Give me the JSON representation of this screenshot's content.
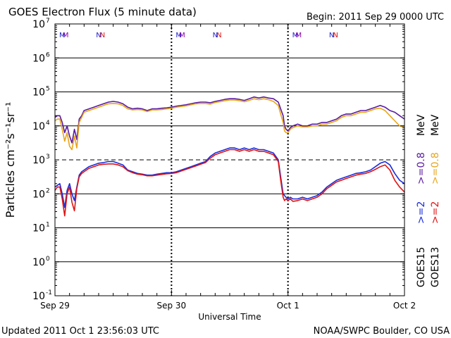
{
  "chart_data": {
    "type": "line",
    "title": "GOES Electron Flux (5 minute data)",
    "begin_label": "Begin: 2011 Sep 29 0000 UTC",
    "xlabel": "Universal Time",
    "ylabel": "Particles cm⁻²s⁻¹sr⁻¹",
    "x_ticks": [
      "Sep 29",
      "Sep 30",
      "Oct 1",
      "Oct 2"
    ],
    "xlim_hours": [
      0,
      72
    ],
    "ylim_log10": [
      -1,
      7
    ],
    "y_ticks": [
      {
        "base": "10",
        "exp": "-1",
        "value": -1
      },
      {
        "base": "10",
        "exp": "0",
        "value": 0
      },
      {
        "base": "10",
        "exp": "1",
        "value": 1
      },
      {
        "base": "10",
        "exp": "2",
        "value": 2
      },
      {
        "base": "10",
        "exp": "3",
        "value": 3
      },
      {
        "base": "10",
        "exp": "4",
        "value": 4
      },
      {
        "base": "10",
        "exp": "5",
        "value": 5
      },
      {
        "base": "10",
        "exp": "6",
        "value": 6
      },
      {
        "base": "10",
        "exp": "7",
        "value": 7
      }
    ],
    "threshold_log10": 3,
    "grid": "horizontal decades, dashed day separators",
    "markers": [
      {
        "label": "M",
        "hour": 1.5,
        "color": "#2222cc"
      },
      {
        "label": "M",
        "hour": 2.2,
        "color": "#8800aa"
      },
      {
        "label": "N",
        "hour": 9.0,
        "color": "#2222cc"
      },
      {
        "label": "N",
        "hour": 9.8,
        "color": "#dd1111"
      },
      {
        "label": "M",
        "hour": 25.5,
        "color": "#2222cc"
      },
      {
        "label": "M",
        "hour": 26.2,
        "color": "#8800aa"
      },
      {
        "label": "N",
        "hour": 33.0,
        "color": "#2222cc"
      },
      {
        "label": "N",
        "hour": 33.8,
        "color": "#dd1111"
      },
      {
        "label": "M",
        "hour": 49.5,
        "color": "#2222cc"
      },
      {
        "label": "M",
        "hour": 50.2,
        "color": "#8800aa"
      },
      {
        "label": "N",
        "hour": 57.0,
        "color": "#2222cc"
      },
      {
        "label": "N",
        "hour": 57.8,
        "color": "#dd1111"
      }
    ],
    "series": [
      {
        "name": "GOES15 >=0.8 MeV",
        "color": "#5a1aa0",
        "x": [
          0,
          0.5,
          1,
          1.5,
          2,
          2.5,
          3,
          3.5,
          4,
          4.5,
          5,
          5.5,
          6,
          7,
          8,
          9,
          10,
          11,
          12,
          13,
          14,
          15,
          16,
          17,
          18,
          19,
          20,
          21,
          22,
          23,
          24,
          25,
          26,
          27,
          28,
          29,
          30,
          31,
          32,
          33,
          34,
          35,
          36,
          37,
          38,
          39,
          40,
          41,
          42,
          43,
          44,
          45,
          46,
          46.5,
          47,
          47.3,
          47.6,
          48,
          48.5,
          49,
          50,
          51,
          52,
          53,
          54,
          55,
          56,
          57,
          58,
          59,
          60,
          61,
          62,
          63,
          64,
          65,
          66,
          67,
          68,
          69,
          70,
          71,
          72
        ],
        "y": [
          4.25,
          4.3,
          4.3,
          4.1,
          3.8,
          4.0,
          3.7,
          3.5,
          3.9,
          3.6,
          4.2,
          4.3,
          4.45,
          4.5,
          4.55,
          4.6,
          4.65,
          4.7,
          4.72,
          4.7,
          4.65,
          4.55,
          4.5,
          4.52,
          4.5,
          4.45,
          4.5,
          4.5,
          4.52,
          4.53,
          4.55,
          4.58,
          4.6,
          4.62,
          4.65,
          4.68,
          4.7,
          4.7,
          4.68,
          4.72,
          4.75,
          4.78,
          4.8,
          4.8,
          4.78,
          4.75,
          4.8,
          4.85,
          4.82,
          4.85,
          4.82,
          4.8,
          4.7,
          4.5,
          4.3,
          4.0,
          3.9,
          3.85,
          3.95,
          4.0,
          4.05,
          4.0,
          4.0,
          4.05,
          4.05,
          4.1,
          4.1,
          4.15,
          4.2,
          4.3,
          4.35,
          4.35,
          4.4,
          4.45,
          4.45,
          4.5,
          4.55,
          4.6,
          4.55,
          4.45,
          4.4,
          4.3,
          4.2
        ]
      },
      {
        "name": "GOES13 >=0.8 MeV",
        "color": "#e8a51c",
        "x": [
          0,
          0.5,
          1,
          1.5,
          2,
          2.5,
          3,
          3.5,
          4,
          4.5,
          5,
          5.5,
          6,
          7,
          8,
          9,
          10,
          11,
          12,
          13,
          14,
          15,
          16,
          17,
          18,
          19,
          20,
          21,
          22,
          23,
          24,
          25,
          26,
          27,
          28,
          29,
          30,
          31,
          32,
          33,
          34,
          35,
          36,
          37,
          38,
          39,
          40,
          41,
          42,
          43,
          44,
          45,
          46,
          46.5,
          47,
          47.3,
          47.6,
          48,
          48.5,
          49,
          50,
          51,
          52,
          53,
          54,
          55,
          56,
          57,
          58,
          59,
          60,
          61,
          62,
          63,
          64,
          65,
          66,
          67,
          68,
          69,
          70,
          71,
          72
        ],
        "y": [
          4.15,
          4.2,
          4.2,
          3.9,
          3.55,
          3.8,
          3.4,
          3.3,
          3.7,
          3.35,
          4.1,
          4.25,
          4.4,
          4.45,
          4.5,
          4.55,
          4.6,
          4.65,
          4.66,
          4.65,
          4.6,
          4.5,
          4.47,
          4.48,
          4.47,
          4.42,
          4.47,
          4.47,
          4.48,
          4.5,
          4.52,
          4.55,
          4.57,
          4.59,
          4.62,
          4.65,
          4.66,
          4.66,
          4.64,
          4.69,
          4.71,
          4.74,
          4.76,
          4.76,
          4.74,
          4.71,
          4.75,
          4.8,
          4.77,
          4.8,
          4.77,
          4.72,
          4.6,
          4.35,
          4.1,
          3.85,
          3.8,
          3.8,
          3.9,
          3.95,
          4.0,
          3.97,
          3.97,
          4.0,
          4.0,
          4.05,
          4.05,
          4.1,
          4.15,
          4.25,
          4.3,
          4.3,
          4.35,
          4.4,
          4.4,
          4.45,
          4.5,
          4.52,
          4.45,
          4.3,
          4.15,
          4.0,
          3.95
        ]
      },
      {
        "name": "GOES15 >=2 MeV",
        "color": "#1a2cd8",
        "x": [
          0,
          0.5,
          1,
          1.5,
          2,
          2.5,
          3,
          3.5,
          4,
          4.5,
          5,
          5.5,
          6,
          7,
          8,
          9,
          10,
          11,
          12,
          13,
          14,
          15,
          16,
          17,
          18,
          19,
          20,
          21,
          22,
          23,
          24,
          25,
          26,
          27,
          28,
          29,
          30,
          31,
          32,
          33,
          34,
          35,
          36,
          37,
          38,
          39,
          40,
          41,
          42,
          43,
          44,
          45,
          46,
          46.5,
          47,
          47.3,
          47.6,
          48,
          48.5,
          49,
          50,
          51,
          52,
          53,
          54,
          55,
          56,
          57,
          58,
          59,
          60,
          61,
          62,
          63,
          64,
          65,
          66,
          67,
          68,
          69,
          70,
          71,
          72
        ],
        "y": [
          2.2,
          2.25,
          2.3,
          2.0,
          1.6,
          2.1,
          2.3,
          2.0,
          1.8,
          2.2,
          2.55,
          2.65,
          2.7,
          2.8,
          2.85,
          2.9,
          2.92,
          2.95,
          2.95,
          2.9,
          2.85,
          2.7,
          2.65,
          2.6,
          2.58,
          2.55,
          2.55,
          2.58,
          2.6,
          2.62,
          2.62,
          2.65,
          2.7,
          2.75,
          2.8,
          2.85,
          2.9,
          2.95,
          3.1,
          3.2,
          3.25,
          3.3,
          3.35,
          3.35,
          3.3,
          3.35,
          3.3,
          3.35,
          3.3,
          3.3,
          3.25,
          3.2,
          3.0,
          2.5,
          2.0,
          1.95,
          1.9,
          1.85,
          1.9,
          1.85,
          1.85,
          1.9,
          1.85,
          1.9,
          1.95,
          2.05,
          2.2,
          2.3,
          2.4,
          2.45,
          2.5,
          2.55,
          2.6,
          2.62,
          2.65,
          2.7,
          2.8,
          2.9,
          2.95,
          2.85,
          2.6,
          2.4,
          2.3
        ]
      },
      {
        "name": "GOES13 >=2 MeV",
        "color": "#e01414",
        "x": [
          0,
          0.5,
          1,
          1.5,
          2,
          2.5,
          3,
          3.5,
          4,
          4.5,
          5,
          5.5,
          6,
          7,
          8,
          9,
          10,
          11,
          12,
          13,
          14,
          15,
          16,
          17,
          18,
          19,
          20,
          21,
          22,
          23,
          24,
          25,
          26,
          27,
          28,
          29,
          30,
          31,
          32,
          33,
          34,
          35,
          36,
          37,
          38,
          39,
          40,
          41,
          42,
          43,
          44,
          45,
          46,
          46.5,
          47,
          47.3,
          47.6,
          48,
          48.5,
          49,
          50,
          51,
          52,
          53,
          54,
          55,
          56,
          57,
          58,
          59,
          60,
          61,
          62,
          63,
          64,
          65,
          66,
          67,
          68,
          69,
          70,
          71,
          72
        ],
        "y": [
          2.1,
          2.2,
          2.2,
          1.85,
          1.35,
          2.0,
          2.2,
          1.75,
          1.5,
          2.15,
          2.5,
          2.6,
          2.65,
          2.75,
          2.8,
          2.85,
          2.87,
          2.88,
          2.88,
          2.85,
          2.8,
          2.68,
          2.62,
          2.58,
          2.56,
          2.53,
          2.53,
          2.55,
          2.57,
          2.59,
          2.6,
          2.62,
          2.67,
          2.72,
          2.77,
          2.82,
          2.87,
          2.92,
          3.05,
          3.15,
          3.2,
          3.25,
          3.3,
          3.3,
          3.25,
          3.3,
          3.25,
          3.3,
          3.25,
          3.25,
          3.2,
          3.15,
          2.95,
          2.4,
          1.9,
          1.8,
          1.85,
          1.8,
          1.85,
          1.78,
          1.8,
          1.85,
          1.8,
          1.85,
          1.9,
          2.0,
          2.15,
          2.25,
          2.35,
          2.4,
          2.45,
          2.5,
          2.55,
          2.58,
          2.6,
          2.65,
          2.72,
          2.8,
          2.85,
          2.7,
          2.4,
          2.2,
          2.05
        ]
      }
    ],
    "legend": {
      "placement": "right-vertical",
      "labels": [
        {
          "id": "goes15",
          "text": "GOES15",
          "color": "#000000"
        },
        {
          "id": "goes13",
          "text": "GOES13",
          "color": "#000000"
        },
        {
          "id": "g15-2",
          "text": ">=2",
          "color": "#1a2cd8"
        },
        {
          "id": "g13-2",
          "text": ">=2",
          "color": "#e01414"
        },
        {
          "id": "g15-08",
          "text": ">=0.8",
          "color": "#5a1aa0"
        },
        {
          "id": "g13-08",
          "text": ">=0.8",
          "color": "#e8a51c"
        },
        {
          "id": "mev-a",
          "text": "MeV",
          "color": "#000000"
        },
        {
          "id": "mev-b",
          "text": "MeV",
          "color": "#000000"
        }
      ]
    },
    "footer_left": "Updated 2011 Oct  1 23:56:03 UTC",
    "footer_right": "NOAA/SWPC Boulder, CO USA"
  }
}
